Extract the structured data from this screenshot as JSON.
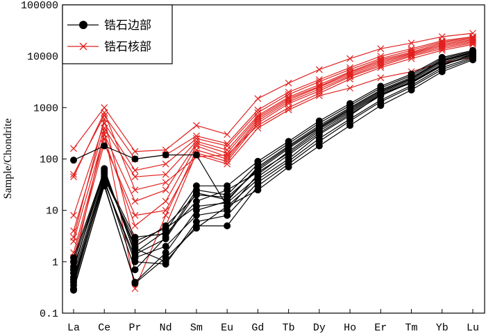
{
  "chart_data": {
    "type": "line",
    "y_scale": "log",
    "ylim": [
      0.1,
      100000
    ],
    "ylabel": "Sample/Chondrite",
    "xlabel": "",
    "categories": [
      "La",
      "Ce",
      "Pr",
      "Nd",
      "Sm",
      "Eu",
      "Gd",
      "Tb",
      "Dy",
      "Ho",
      "Er",
      "Tm",
      "Yb",
      "Lu"
    ],
    "yticks": [
      {
        "value": 0.1,
        "label": "0.1"
      },
      {
        "value": 1,
        "label": "1"
      },
      {
        "value": 10,
        "label": "10"
      },
      {
        "value": 100,
        "label": "100"
      },
      {
        "value": 1000,
        "label": "1000"
      },
      {
        "value": 10000,
        "label": "10000"
      },
      {
        "value": 100000,
        "label": "100000"
      }
    ],
    "legend": {
      "placement": "top-left",
      "entries": [
        {
          "label": "锆石边部",
          "color": "#000000",
          "marker": "filled-circle"
        },
        {
          "label": "锆石核部",
          "color": "#e0201e",
          "marker": "x"
        }
      ]
    },
    "series_groups": [
      {
        "name": "锆石边部",
        "color": "#000000",
        "marker": "filled-circle",
        "lines": [
          [
            95,
            180,
            100,
            120,
            120,
            12,
            40,
            100,
            300,
            700,
            1800,
            3000,
            6500,
            11000
          ],
          [
            1.2,
            60,
            1.5,
            4,
            30,
            30,
            90,
            220,
            550,
            1200,
            2600,
            4500,
            9500,
            13000
          ],
          [
            0.5,
            40,
            0.7,
            3,
            25,
            20,
            80,
            200,
            500,
            1100,
            2400,
            4200,
            9000,
            12500
          ],
          [
            0.3,
            30,
            0.4,
            1.5,
            10,
            15,
            70,
            180,
            450,
            1000,
            2200,
            3900,
            8500,
            12000
          ],
          [
            0.8,
            50,
            2,
            5,
            20,
            18,
            60,
            160,
            400,
            900,
            2000,
            3600,
            8000,
            11500
          ],
          [
            0.4,
            35,
            1.2,
            2,
            8,
            10,
            50,
            140,
            380,
            850,
            1900,
            3400,
            7500,
            11000
          ],
          [
            0.6,
            45,
            3,
            3.5,
            15,
            25,
            55,
            130,
            350,
            800,
            1800,
            3200,
            7000,
            10500
          ],
          [
            1,
            55,
            1.8,
            1,
            5,
            5,
            30,
            80,
            220,
            550,
            1300,
            2500,
            5500,
            9000
          ],
          [
            0.35,
            38,
            1,
            0.9,
            6,
            8,
            35,
            90,
            250,
            600,
            1400,
            2700,
            6000,
            9500
          ],
          [
            0.45,
            42,
            2.5,
            4.5,
            12,
            14,
            45,
            120,
            320,
            750,
            1700,
            3100,
            6800,
            10000
          ],
          [
            0.7,
            65,
            1.4,
            2.8,
            22,
            16,
            65,
            170,
            420,
            950,
            2100,
            3700,
            8200,
            11800
          ],
          [
            0.28,
            32,
            0.38,
            1.2,
            4.5,
            12,
            25,
            70,
            180,
            450,
            1100,
            2200,
            5000,
            8500
          ]
        ]
      },
      {
        "name": "锆石核部",
        "color": "#e0201e",
        "marker": "x",
        "lines": [
          [
            160,
            1000,
            140,
            150,
            450,
            300,
            1500,
            3000,
            5500,
            9000,
            14000,
            18000,
            24000,
            28000
          ],
          [
            50,
            700,
            100,
            120,
            280,
            200,
            900,
            2000,
            3500,
            6000,
            10000,
            14000,
            20000,
            24000
          ],
          [
            8,
            500,
            60,
            80,
            250,
            180,
            800,
            1800,
            3200,
            5500,
            9000,
            13000,
            19000,
            23000
          ],
          [
            4,
            400,
            45,
            50,
            220,
            150,
            700,
            1600,
            2800,
            5000,
            8500,
            12000,
            18000,
            22000
          ],
          [
            2.5,
            300,
            15,
            25,
            200,
            130,
            650,
            1500,
            2600,
            4800,
            8000,
            11500,
            17000,
            21000
          ],
          [
            1.5,
            250,
            5,
            15,
            180,
            110,
            600,
            1400,
            2500,
            4500,
            7500,
            11000,
            16000,
            20000
          ],
          [
            0.8,
            350,
            0.3,
            8,
            150,
            100,
            550,
            1300,
            2300,
            4200,
            7000,
            10500,
            15000,
            19000
          ],
          [
            3,
            600,
            2,
            5,
            130,
            90,
            500,
            1200,
            2100,
            4000,
            6500,
            10000,
            14000,
            18000
          ],
          [
            45,
            800,
            25,
            35,
            110,
            120,
            450,
            1000,
            1900,
            3600,
            6000,
            9000,
            13000,
            17000
          ],
          [
            1.2,
            200,
            8,
            10,
            120,
            80,
            400,
            900,
            1700,
            2400,
            3800,
            5000,
            7500,
            9500
          ]
        ]
      }
    ]
  }
}
